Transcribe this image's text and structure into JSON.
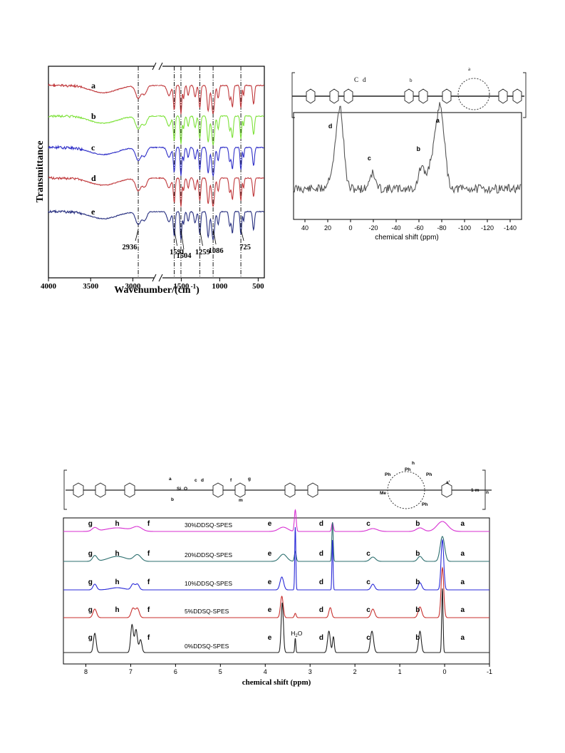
{
  "chart_data": [
    {
      "type": "line",
      "panel": "FTIR",
      "xlabel": "Wavenumber/(cm",
      "xlabel_sup": "-1",
      "xlabel_end": ")",
      "ylabel": "Transmittance",
      "x_break": [
        2700,
        1800
      ],
      "x_ticks": [
        "4000",
        "3500",
        "3000",
        "1500",
        "1000",
        "500"
      ],
      "x_tick_values": [
        4000,
        3500,
        3000,
        1500,
        1000,
        500
      ],
      "xlim": [
        4000,
        420
      ],
      "reference_lines": [
        2936,
        1591,
        1504,
        1259,
        1086,
        725
      ],
      "annotations": [
        {
          "text": "2936",
          "x": 2936
        },
        {
          "text": "1591",
          "x": 1591
        },
        {
          "text": "1504",
          "x": 1504
        },
        {
          "text": "1259",
          "x": 1259
        },
        {
          "text": "1086",
          "x": 1086
        },
        {
          "text": "725",
          "x": 725
        }
      ],
      "series": [
        {
          "name": "a",
          "color": "#c0393c"
        },
        {
          "name": "b",
          "color": "#7ee23a"
        },
        {
          "name": "c",
          "color": "#3030c8"
        },
        {
          "name": "d",
          "color": "#c0393c"
        },
        {
          "name": "e",
          "color": "#283080"
        }
      ]
    },
    {
      "type": "line",
      "panel": "29Si NMR",
      "xlabel": "chemical shift (ppm)",
      "x_ticks": [
        "40",
        "20",
        "0",
        "-20",
        "-40",
        "-60",
        "-80",
        "-100",
        "-120",
        "-140"
      ],
      "x_tick_values": [
        40,
        20,
        0,
        -20,
        -40,
        -60,
        -80,
        -100,
        -120,
        -140
      ],
      "xlim": [
        50,
        -150
      ],
      "peaks": [
        {
          "label": "d",
          "x": 9
        },
        {
          "label": "c",
          "x": -19
        },
        {
          "label": "b",
          "x": -62
        },
        {
          "label": "a",
          "x": -79
        }
      ],
      "structure_labels": [
        "C",
        "d",
        "a",
        "b"
      ],
      "color": "#555555"
    },
    {
      "type": "line",
      "panel": "1H NMR",
      "xlabel": "chemical shift (ppm)",
      "x_ticks": [
        "8",
        "7",
        "6",
        "5",
        "4",
        "3",
        "2",
        "1",
        "0",
        "-1"
      ],
      "x_tick_values": [
        8,
        7,
        6,
        5,
        4,
        3,
        2,
        1,
        0,
        -1
      ],
      "xlim": [
        8.5,
        -1
      ],
      "water_label": "H",
      "water_sub": "2",
      "water_end": "O",
      "structure_labels": [
        "a",
        "b",
        "c",
        "d",
        "f",
        "g",
        "h",
        "a'",
        "m",
        "1-m",
        "n",
        "Ph",
        "Me",
        "Si",
        "O"
      ],
      "series": [
        {
          "name": "30%DDSQ-SPES",
          "color": "#d72fd2",
          "peak_labels": [
            "g",
            "h",
            "f",
            "e",
            "d",
            "c",
            "b",
            "a"
          ]
        },
        {
          "name": "20%DDSQ-SPES",
          "color": "#2d6f6f",
          "peak_labels": [
            "g",
            "h",
            "f",
            "e",
            "d",
            "c",
            "b",
            "a"
          ]
        },
        {
          "name": "10%DDSQ-SPES",
          "color": "#2a2ad8",
          "peak_labels": [
            "g",
            "h",
            "f",
            "e",
            "d",
            "c",
            "b",
            "a"
          ]
        },
        {
          "name": "5%DDSQ-SPES",
          "color": "#c8302e",
          "peak_labels": [
            "g",
            "h",
            "f",
            "e",
            "d",
            "c",
            "b",
            "a"
          ]
        },
        {
          "name": "0%DDSQ-SPES",
          "color": "#222222",
          "peak_labels": [
            "g",
            "f",
            "e",
            "d",
            "c",
            "b",
            "a"
          ]
        }
      ]
    }
  ]
}
